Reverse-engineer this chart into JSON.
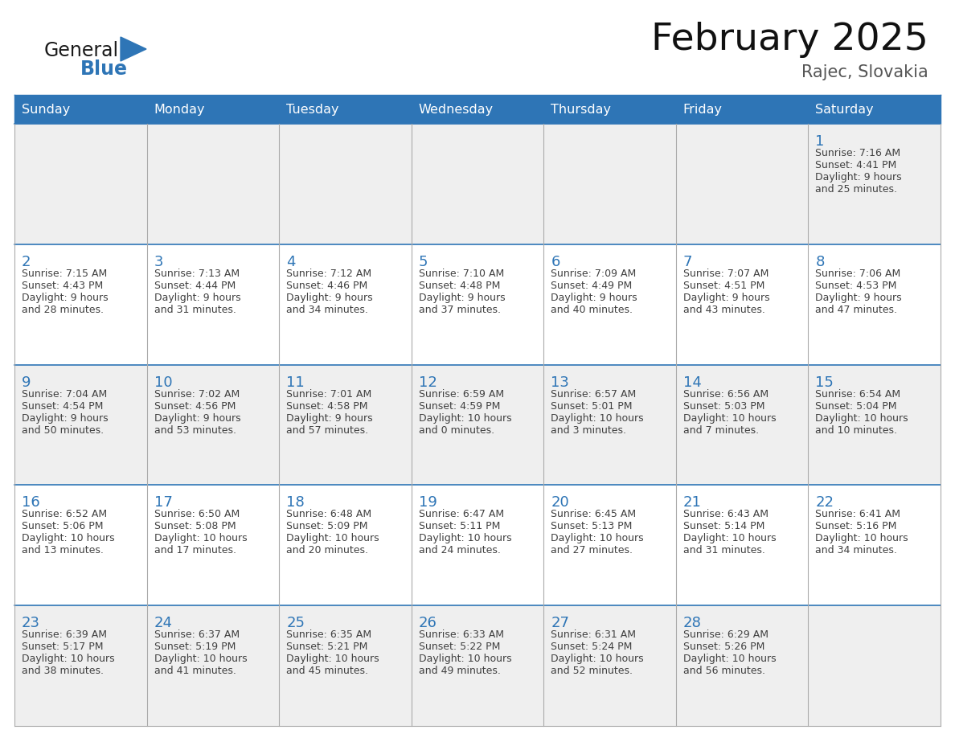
{
  "title": "February 2025",
  "subtitle": "Rajec, Slovakia",
  "days_of_week": [
    "Sunday",
    "Monday",
    "Tuesday",
    "Wednesday",
    "Thursday",
    "Friday",
    "Saturday"
  ],
  "header_bg": "#2E75B6",
  "header_text": "#FFFFFF",
  "cell_bg_odd": "#EFEFEF",
  "cell_bg_even": "#FFFFFF",
  "day_number_color": "#2E75B6",
  "text_color": "#404040",
  "border_color": "#AAAAAA",
  "separator_color": "#2E75B6",
  "logo_general_color": "#1A1A1A",
  "logo_blue_color": "#2E75B6",
  "calendar_data": {
    "1": {
      "sunrise": "7:16 AM",
      "sunset": "4:41 PM",
      "daylight_hours": 9,
      "daylight_minutes": 25
    },
    "2": {
      "sunrise": "7:15 AM",
      "sunset": "4:43 PM",
      "daylight_hours": 9,
      "daylight_minutes": 28
    },
    "3": {
      "sunrise": "7:13 AM",
      "sunset": "4:44 PM",
      "daylight_hours": 9,
      "daylight_minutes": 31
    },
    "4": {
      "sunrise": "7:12 AM",
      "sunset": "4:46 PM",
      "daylight_hours": 9,
      "daylight_minutes": 34
    },
    "5": {
      "sunrise": "7:10 AM",
      "sunset": "4:48 PM",
      "daylight_hours": 9,
      "daylight_minutes": 37
    },
    "6": {
      "sunrise": "7:09 AM",
      "sunset": "4:49 PM",
      "daylight_hours": 9,
      "daylight_minutes": 40
    },
    "7": {
      "sunrise": "7:07 AM",
      "sunset": "4:51 PM",
      "daylight_hours": 9,
      "daylight_minutes": 43
    },
    "8": {
      "sunrise": "7:06 AM",
      "sunset": "4:53 PM",
      "daylight_hours": 9,
      "daylight_minutes": 47
    },
    "9": {
      "sunrise": "7:04 AM",
      "sunset": "4:54 PM",
      "daylight_hours": 9,
      "daylight_minutes": 50
    },
    "10": {
      "sunrise": "7:02 AM",
      "sunset": "4:56 PM",
      "daylight_hours": 9,
      "daylight_minutes": 53
    },
    "11": {
      "sunrise": "7:01 AM",
      "sunset": "4:58 PM",
      "daylight_hours": 9,
      "daylight_minutes": 57
    },
    "12": {
      "sunrise": "6:59 AM",
      "sunset": "4:59 PM",
      "daylight_hours": 10,
      "daylight_minutes": 0
    },
    "13": {
      "sunrise": "6:57 AM",
      "sunset": "5:01 PM",
      "daylight_hours": 10,
      "daylight_minutes": 3
    },
    "14": {
      "sunrise": "6:56 AM",
      "sunset": "5:03 PM",
      "daylight_hours": 10,
      "daylight_minutes": 7
    },
    "15": {
      "sunrise": "6:54 AM",
      "sunset": "5:04 PM",
      "daylight_hours": 10,
      "daylight_minutes": 10
    },
    "16": {
      "sunrise": "6:52 AM",
      "sunset": "5:06 PM",
      "daylight_hours": 10,
      "daylight_minutes": 13
    },
    "17": {
      "sunrise": "6:50 AM",
      "sunset": "5:08 PM",
      "daylight_hours": 10,
      "daylight_minutes": 17
    },
    "18": {
      "sunrise": "6:48 AM",
      "sunset": "5:09 PM",
      "daylight_hours": 10,
      "daylight_minutes": 20
    },
    "19": {
      "sunrise": "6:47 AM",
      "sunset": "5:11 PM",
      "daylight_hours": 10,
      "daylight_minutes": 24
    },
    "20": {
      "sunrise": "6:45 AM",
      "sunset": "5:13 PM",
      "daylight_hours": 10,
      "daylight_minutes": 27
    },
    "21": {
      "sunrise": "6:43 AM",
      "sunset": "5:14 PM",
      "daylight_hours": 10,
      "daylight_minutes": 31
    },
    "22": {
      "sunrise": "6:41 AM",
      "sunset": "5:16 PM",
      "daylight_hours": 10,
      "daylight_minutes": 34
    },
    "23": {
      "sunrise": "6:39 AM",
      "sunset": "5:17 PM",
      "daylight_hours": 10,
      "daylight_minutes": 38
    },
    "24": {
      "sunrise": "6:37 AM",
      "sunset": "5:19 PM",
      "daylight_hours": 10,
      "daylight_minutes": 41
    },
    "25": {
      "sunrise": "6:35 AM",
      "sunset": "5:21 PM",
      "daylight_hours": 10,
      "daylight_minutes": 45
    },
    "26": {
      "sunrise": "6:33 AM",
      "sunset": "5:22 PM",
      "daylight_hours": 10,
      "daylight_minutes": 49
    },
    "27": {
      "sunrise": "6:31 AM",
      "sunset": "5:24 PM",
      "daylight_hours": 10,
      "daylight_minutes": 52
    },
    "28": {
      "sunrise": "6:29 AM",
      "sunset": "5:26 PM",
      "daylight_hours": 10,
      "daylight_minutes": 56
    }
  },
  "week_layout": [
    [
      null,
      null,
      null,
      null,
      null,
      null,
      1
    ],
    [
      2,
      3,
      4,
      5,
      6,
      7,
      8
    ],
    [
      9,
      10,
      11,
      12,
      13,
      14,
      15
    ],
    [
      16,
      17,
      18,
      19,
      20,
      21,
      22
    ],
    [
      23,
      24,
      25,
      26,
      27,
      28,
      null
    ]
  ]
}
